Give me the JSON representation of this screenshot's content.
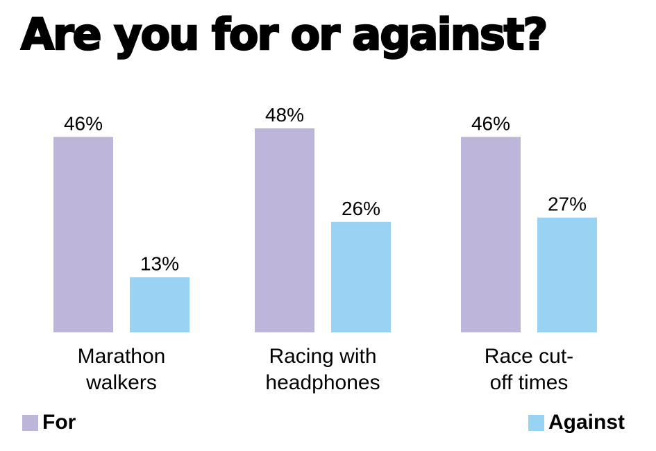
{
  "title": "Are you for or against?",
  "colors": {
    "for": "#bdb5da",
    "against": "#99d3f3"
  },
  "legend": {
    "for_label": "For",
    "against_label": "Against"
  },
  "chart_data": {
    "type": "bar",
    "title": "Are you for or against?",
    "categories": [
      [
        "Marathon",
        "walkers"
      ],
      [
        "Racing with",
        "headphones"
      ],
      [
        "Race cut-",
        "off times"
      ]
    ],
    "series": [
      {
        "name": "For",
        "values": [
          46,
          48,
          46
        ],
        "labels": [
          "46%",
          "48%",
          "46%"
        ]
      },
      {
        "name": "Against",
        "values": [
          13,
          26,
          27
        ],
        "labels": [
          "13%",
          "26%",
          "27%"
        ]
      }
    ],
    "xlabel": "",
    "ylabel": "",
    "ylim": [
      0,
      48
    ],
    "grid": false,
    "legend_position": "bottom"
  }
}
